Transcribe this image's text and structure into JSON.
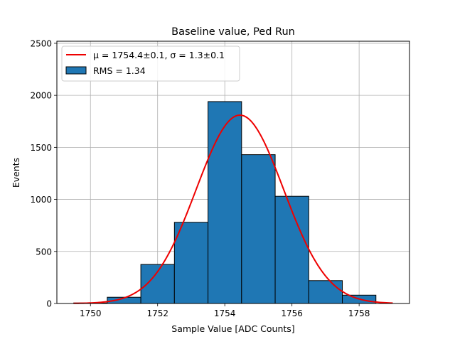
{
  "chart_data": {
    "type": "bar",
    "title": "Baseline value, Ped Run",
    "xlabel": "Sample Value [ADC Counts]",
    "ylabel": "Events",
    "xlim": [
      1749,
      1759.5
    ],
    "ylim": [
      0,
      2520
    ],
    "xticks": [
      1750,
      1752,
      1754,
      1756,
      1758
    ],
    "yticks": [
      0,
      500,
      1000,
      1500,
      2000,
      2500
    ],
    "grid": true,
    "legend_position": "upper-left",
    "colors": {
      "bar": "#1f77b4",
      "fit": "#ee0000",
      "edge": "#000000"
    },
    "histogram": {
      "name": "RMS = 1.34",
      "bins": [
        {
          "x0": 1749.5,
          "x1": 1750.5,
          "value": 5
        },
        {
          "x0": 1750.5,
          "x1": 1751.5,
          "value": 60
        },
        {
          "x0": 1751.5,
          "x1": 1752.5,
          "value": 375
        },
        {
          "x0": 1752.5,
          "x1": 1753.5,
          "value": 780
        },
        {
          "x0": 1753.5,
          "x1": 1754.5,
          "value": 1940
        },
        {
          "x0": 1754.5,
          "x1": 1755.5,
          "value": 1430
        },
        {
          "x0": 1755.5,
          "x1": 1756.5,
          "value": 1030
        },
        {
          "x0": 1756.5,
          "x1": 1757.5,
          "value": 220
        },
        {
          "x0": 1757.5,
          "x1": 1758.5,
          "value": 80
        }
      ]
    },
    "fit": {
      "name_prefix": "μ = 1754.4±0.1, σ = 1.3±0.1",
      "mu": 1754.45,
      "sigma": 1.3,
      "amplitude": 1810,
      "x_range": [
        1749.5,
        1759.0
      ]
    }
  }
}
